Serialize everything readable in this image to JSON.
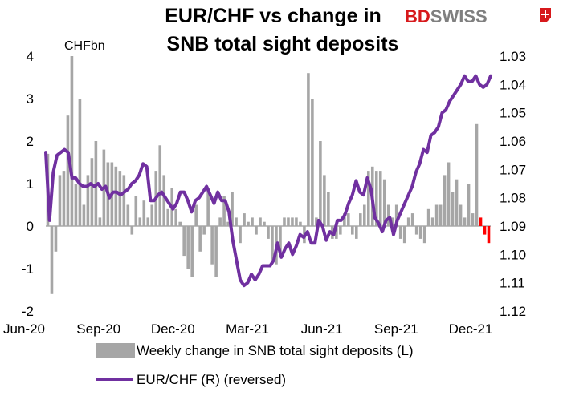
{
  "brand": {
    "prefix": "BD",
    "suffix": "SWISS",
    "colors": {
      "prefix": "#d7191c",
      "suffix": "#7f7f7f"
    }
  },
  "chart_data": {
    "type": "bar+line",
    "title_lines": [
      "EUR/CHF vs change in",
      "SNB total sight deposits"
    ],
    "unit_label": "CHFbn",
    "x_tick_labels": [
      "Jun-20",
      "Sep-20",
      "Dec-20",
      "Mar-21",
      "Jun-21",
      "Sep-21",
      "Dec-21"
    ],
    "left_axis": {
      "ylim": [
        -2,
        4
      ],
      "tick_labels": [
        "4",
        "3",
        "2",
        "1",
        "0",
        "-1",
        "-2"
      ]
    },
    "right_axis": {
      "ylim": [
        1.12,
        1.03
      ],
      "reversed": true,
      "tick_labels": [
        "1.03",
        "1.04",
        "1.05",
        "1.06",
        "1.07",
        "1.08",
        "1.09",
        "1.10",
        "1.11",
        "1.12"
      ]
    },
    "series": [
      {
        "name": "Weekly change in SNB total sight deposits (L)",
        "type": "bar",
        "color": "#a6a6a6",
        "highlight_color": "#ff0000",
        "highlight_last": 3,
        "values": [
          1.7,
          -1.6,
          -0.6,
          1.2,
          1.3,
          2.6,
          4.0,
          1.0,
          3.0,
          0.5,
          1.2,
          1.6,
          2.0,
          0.2,
          1.8,
          1.5,
          1.5,
          1.4,
          1.3,
          1.2,
          0.5,
          -0.2,
          0.7,
          0.2,
          0.6,
          0.2,
          0.5,
          1.3,
          1.9,
          1.2,
          0.4,
          0.9,
          0.4,
          0.1,
          -0.7,
          -1.0,
          -1.2,
          0.5,
          -0.6,
          -0.2,
          0.9,
          -0.9,
          -1.2,
          0.2,
          0.7,
          0.1,
          0.8,
          0.2,
          -0.4,
          0.3,
          0.1,
          0.2,
          -0.2,
          0.2,
          0.1,
          -0.3,
          -0.8,
          -0.9,
          -0.6,
          0.2,
          0.2,
          0.2,
          0.2,
          0.1,
          -0.4,
          3.6,
          3.0,
          0.2,
          2.0,
          1.2,
          0.8,
          -0.3,
          -0.3,
          -0.2,
          0.3,
          0.3,
          -0.2,
          -0.3,
          0.3,
          0.5,
          1.3,
          1.4,
          1.3,
          1.3,
          1.1,
          0.5,
          0.2,
          0.5,
          -0.3,
          -0.4,
          0.2,
          0.3,
          -0.2,
          -0.3,
          -0.4,
          0.4,
          0.2,
          0.5,
          0.5,
          1.2,
          1.5,
          0.8,
          1.1,
          0.5,
          0.2,
          1.0,
          0.3,
          2.4,
          0.2,
          -0.2,
          -0.4
        ]
      },
      {
        "name": "EUR/CHF (R) (reversed)",
        "type": "line",
        "color": "#7030a0",
        "values": [
          1.064,
          1.088,
          1.071,
          1.065,
          1.064,
          1.063,
          1.064,
          1.073,
          1.073,
          1.075,
          1.076,
          1.076,
          1.075,
          1.076,
          1.075,
          1.077,
          1.076,
          1.08,
          1.078,
          1.078,
          1.079,
          1.078,
          1.077,
          1.075,
          1.074,
          1.072,
          1.068,
          1.069,
          1.081,
          1.081,
          1.079,
          1.078,
          1.08,
          1.082,
          1.084,
          1.082,
          1.078,
          1.078,
          1.081,
          1.085,
          1.081,
          1.08,
          1.078,
          1.076,
          1.079,
          1.082,
          1.078,
          1.081,
          1.081,
          1.085,
          1.095,
          1.102,
          1.109,
          1.111,
          1.11,
          1.107,
          1.109,
          1.107,
          1.104,
          1.104,
          1.104,
          1.102,
          1.096,
          1.101,
          1.098,
          1.096,
          1.1,
          1.097,
          1.093,
          1.094,
          1.092,
          1.096,
          1.096,
          1.088,
          1.09,
          1.095,
          1.092,
          1.093,
          1.088,
          1.088,
          1.086,
          1.082,
          1.079,
          1.074,
          1.078,
          1.079,
          1.073,
          1.077,
          1.087,
          1.089,
          1.092,
          1.088,
          1.087,
          1.093,
          1.088,
          1.085,
          1.082,
          1.079,
          1.076,
          1.071,
          1.068,
          1.063,
          1.064,
          1.058,
          1.057,
          1.055,
          1.05,
          1.049,
          1.046,
          1.044,
          1.042,
          1.04,
          1.037,
          1.039,
          1.039,
          1.037,
          1.04,
          1.041,
          1.04,
          1.037
        ]
      }
    ]
  }
}
